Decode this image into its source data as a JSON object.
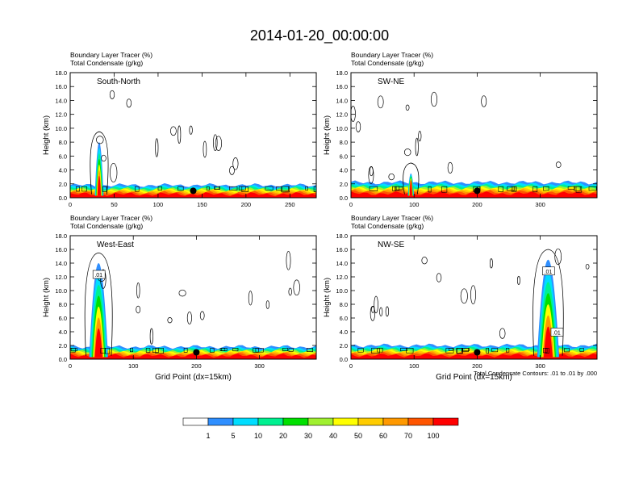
{
  "figure": {
    "title": "2014-01-20_00:00:00",
    "contour_note": "Total Condensate Contours: .01 to .01 by .000"
  },
  "chart_data": [
    {
      "type": "heatmap",
      "panel": "South-North",
      "label": "South-North",
      "subtitle_1": "Boundary Layer Tracer   (%)",
      "subtitle_2": "Total Condensate   (g/kg)",
      "ylabel": "Height (km)",
      "xlabel": "",
      "xlim": [
        0,
        280
      ],
      "ylim": [
        0,
        18
      ],
      "xticks": [
        0,
        50,
        100,
        150,
        200,
        250
      ],
      "yticks": [
        0,
        2,
        4,
        6,
        8,
        10,
        12,
        14,
        16,
        18
      ],
      "ytick_labels": [
        "0.0",
        "2.0",
        "4.0",
        "6.0",
        "8.0",
        "10.0",
        "12.0",
        "14.0",
        "16.0",
        "18.0"
      ],
      "tracer_layer_top_km": 1.8,
      "plume": {
        "x_range": [
          28,
          38
        ],
        "top_km": 8.0
      },
      "marker": {
        "x": 140,
        "y_km": 1.0
      }
    },
    {
      "type": "heatmap",
      "panel": "SW-NE",
      "label": "SW-NE",
      "subtitle_1": "Boundary Layer Tracer   (%)",
      "subtitle_2": "Total Condensate   (g/kg)",
      "ylabel": "Height (km)",
      "xlabel": "",
      "xlim": [
        0,
        390
      ],
      "ylim": [
        0,
        18
      ],
      "xticks": [
        0,
        100,
        200,
        300
      ],
      "yticks": [
        0,
        2,
        4,
        6,
        8,
        10,
        12,
        14,
        16,
        18
      ],
      "ytick_labels": [
        "0.0",
        "2.0",
        "4.0",
        "6.0",
        "8.0",
        "10.0",
        "12.0",
        "14.0",
        "16.0",
        "18.0"
      ],
      "tracer_layer_top_km": 2.2,
      "plume": {
        "x_range": [
          90,
          100
        ],
        "top_km": 3.5
      },
      "marker": {
        "x": 200,
        "y_km": 1.0
      }
    },
    {
      "type": "heatmap",
      "panel": "West-East",
      "label": "West-East",
      "subtitle_1": "Boundary Layer Tracer   (%)",
      "subtitle_2": "Total Condensate   (g/kg)",
      "ylabel": "Height (km)",
      "xlabel": "Grid Point (dx=15km)",
      "xlim": [
        0,
        390
      ],
      "ylim": [
        0,
        18
      ],
      "xticks": [
        0,
        100,
        200,
        300
      ],
      "yticks": [
        0,
        2,
        4,
        6,
        8,
        10,
        12,
        14,
        16,
        18
      ],
      "ytick_labels": [
        "0.0",
        "2.0",
        "4.0",
        "6.0",
        "8.0",
        "10.0",
        "12.0",
        "14.0",
        "16.0",
        "18.0"
      ],
      "tracer_layer_top_km": 1.8,
      "plume": {
        "x_range": [
          30,
          60
        ],
        "top_km": 14.0
      },
      "contour_label": ".01",
      "marker": {
        "x": 200,
        "y_km": 1.0
      }
    },
    {
      "type": "heatmap",
      "panel": "NW-SE",
      "label": "NW-SE",
      "subtitle_1": "Boundary Layer Tracer   (%)",
      "subtitle_2": "Total Condensate   (g/kg)",
      "ylabel": "Height (km)",
      "xlabel": "Grid Point (dx=15km)",
      "xlim": [
        0,
        390
      ],
      "ylim": [
        0,
        18
      ],
      "xticks": [
        0,
        100,
        200,
        300
      ],
      "yticks": [
        0,
        2,
        4,
        6,
        8,
        10,
        12,
        14,
        16,
        18
      ],
      "ytick_labels": [
        "0.0",
        "2.0",
        "4.0",
        "6.0",
        "8.0",
        "10.0",
        "12.0",
        "14.0",
        "16.0",
        "18.0"
      ],
      "tracer_layer_top_km": 2.0,
      "plume": {
        "x_range": [
          295,
          330
        ],
        "top_km": 14.5
      },
      "contour_label": ".01",
      "contour_label_2": ".01",
      "marker": {
        "x": 200,
        "y_km": 1.0
      }
    }
  ],
  "colorbar": {
    "colors": [
      "#ffffff",
      "#2f8fff",
      "#00ddff",
      "#00f090",
      "#00e000",
      "#a0f030",
      "#ffff00",
      "#ffcc00",
      "#ff9900",
      "#ff5500",
      "#ff0000"
    ],
    "labels": [
      "1",
      "5",
      "10",
      "20",
      "30",
      "40",
      "50",
      "60",
      "70",
      "100"
    ]
  }
}
